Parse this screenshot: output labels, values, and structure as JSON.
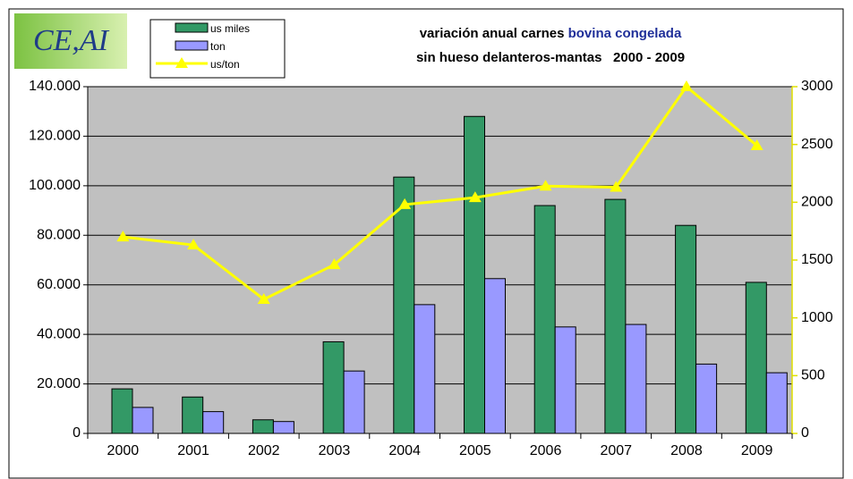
{
  "logo": "CE,AI",
  "chart_data": {
    "type": "bar",
    "title_line1": "variación anual carnes ",
    "title_highlight": "bovina congelada",
    "title_line2": "sin hueso delanteros-mantas   2000 - 2009",
    "categories": [
      "2000",
      "2001",
      "2002",
      "2003",
      "2004",
      "2005",
      "2006",
      "2007",
      "2008",
      "2009"
    ],
    "series": [
      {
        "name": "us miles",
        "color": "#339966",
        "values": [
          18000,
          14700,
          5500,
          37000,
          103500,
          128000,
          92000,
          94500,
          84000,
          61000
        ]
      },
      {
        "name": "ton",
        "color": "#9999ff",
        "values": [
          10500,
          8800,
          4800,
          25200,
          52000,
          62500,
          43000,
          44000,
          28000,
          24500
        ]
      },
      {
        "name": "us/ton",
        "color": "#ffff00",
        "type": "line",
        "axis": "y2",
        "values": [
          1700,
          1630,
          1160,
          1460,
          1980,
          2040,
          2140,
          2130,
          3000,
          2490
        ]
      }
    ],
    "ylim": [
      0,
      140000
    ],
    "yticks": [
      0,
      {
        "value": 20000,
        "label": "20.000"
      },
      {
        "value": 40000,
        "label": "40.000"
      },
      {
        "value": 60000,
        "label": "60.000"
      },
      {
        "value": 80000,
        "label": "80.000"
      },
      {
        "value": 100000,
        "label": "100.000"
      },
      {
        "value": 120000,
        "label": "120.000"
      },
      {
        "value": 140000,
        "label": "140.000"
      }
    ],
    "y2lim": [
      0,
      3000
    ],
    "y2ticks": [
      0,
      500,
      1000,
      1500,
      2000,
      2500,
      3000
    ],
    "grid": true
  }
}
